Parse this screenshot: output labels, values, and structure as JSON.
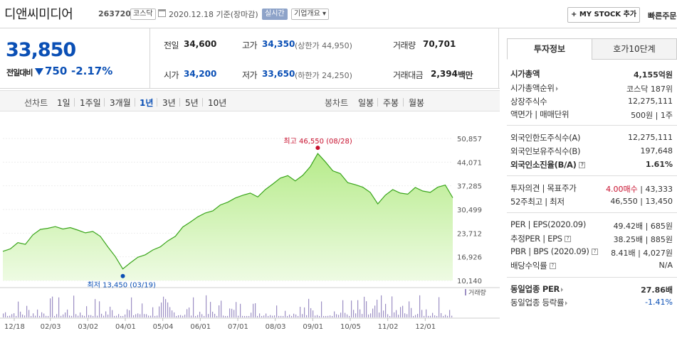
{
  "header": {
    "stock_name": "디앤씨미디어",
    "stock_code": "263720",
    "market_badge": "코스닥",
    "base_date": "2020.12.18 기준(장마감)",
    "realtime_badge": "실시간",
    "company_info_badge": "기업개요 ▾",
    "my_stock_button": "+ MY STOCK 추가",
    "quick_order": "빠른주문"
  },
  "price": {
    "current": "33,850",
    "change_label": "전일대비",
    "change_value": "750",
    "change_pct": "-2.17%"
  },
  "summary": {
    "prev_close_label": "전일",
    "prev_close": "34,600",
    "open_label": "시가",
    "open": "34,200",
    "high_label": "고가",
    "high": "34,350",
    "upper_limit": "(상한가 44,950)",
    "low_label": "저가",
    "low": "33,650",
    "lower_limit": "(하한가 24,250)",
    "volume_label": "거래량",
    "volume": "70,701",
    "amount_label": "거래대금",
    "amount": "2,394",
    "amount_unit": "백만"
  },
  "periods": {
    "line_label": "선차트",
    "line_tabs": [
      "1일",
      "1주일",
      "3개월",
      "1년",
      "3년",
      "5년",
      "10년"
    ],
    "candle_label": "봉차트",
    "candle_tabs": [
      "일봉",
      "주봉",
      "월봉"
    ]
  },
  "chart_data": {
    "type": "area",
    "yticks": [
      "50,857",
      "44,071",
      "37,285",
      "30,499",
      "23,712",
      "16,926",
      "10,140"
    ],
    "ylim": [
      10140,
      50857
    ],
    "xticks": [
      "12/18",
      "02/03",
      "03/02",
      "04/01",
      "05/04",
      "06/01",
      "07/01",
      "08/03",
      "09/01",
      "10/05",
      "11/02",
      "12/01"
    ],
    "high_annotation": "최고 46,550 (08/28)",
    "low_annotation": "최저 13,450 (03/19)",
    "volume_legend": "거래량",
    "series": [
      {
        "values": [
          18500,
          19200,
          21000,
          20500,
          23200,
          24800,
          25100,
          25600,
          24900,
          25300,
          24600,
          23800,
          24200,
          22800,
          19800,
          17000,
          13450,
          15200,
          16800,
          17500,
          18900,
          19800,
          21500,
          22800,
          25500,
          26900,
          28400,
          29500,
          30100,
          31800,
          32600,
          33800,
          34600,
          35200,
          34100,
          36200,
          37800,
          39500,
          40200,
          38700,
          40300,
          42800,
          46550,
          44200,
          41600,
          40800,
          38200,
          37600,
          36900,
          35400,
          32100,
          34600,
          36200,
          35200,
          34900,
          36800,
          35800,
          35400,
          36900,
          37500,
          33850
        ],
        "colors": {
          "line": "#3aa51b",
          "fill_top": "#b6eb8a",
          "fill_bottom": "#eefbe3"
        }
      }
    ]
  },
  "invest_info": {
    "tab_active": "투자정보",
    "tab_other": "호가10단계",
    "market_cap_label": "시가총액",
    "market_cap": "4,155억원",
    "market_cap_rank_label": "시가총액순위",
    "market_cap_rank": "코스닥 187위",
    "shares_label": "상장주식수",
    "shares": "12,275,111",
    "par_label": "액면가 | 매매단위",
    "par": "500원 | 1주",
    "foreign_limit_label": "외국인한도주식수(A)",
    "foreign_limit": "12,275,111",
    "foreign_hold_label": "외국인보유주식수(B)",
    "foreign_hold": "197,648",
    "foreign_ratio_label": "외국인소진율(B/A)",
    "foreign_ratio": "1.61%",
    "opinion_label": "투자의견 | 목표주가",
    "opinion": "4.00매수",
    "target": "| 43,333",
    "hl52_label": "52주최고 | 최저",
    "hl52": "46,550 | 13,450",
    "per_label": "PER | EPS(2020.09)",
    "per": "49.42배 | 685원",
    "est_per_label": "추정PER | EPS",
    "est_per": "38.25배 | 885원",
    "pbr_label": "PBR | BPS (2020.09)",
    "pbr": "8.41배 | 4,027원",
    "div_label": "배당수익률",
    "div": "N/A",
    "ind_per_label": "동일업종 PER",
    "ind_per": "27.86배",
    "ind_chg_label": "동일업종 등락률",
    "ind_chg": "-1.41%"
  }
}
